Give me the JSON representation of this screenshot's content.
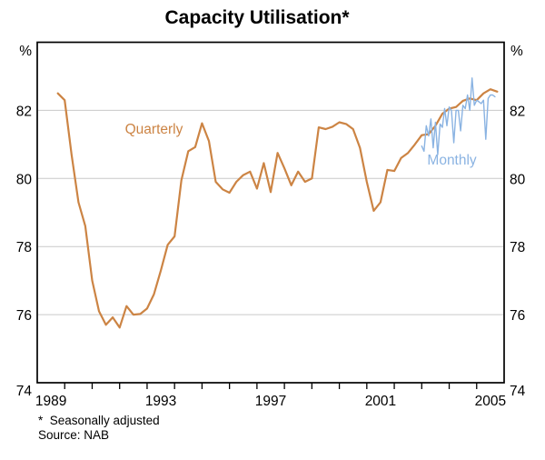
{
  "title": "Capacity Utilisation*",
  "axis_unit_left": "%",
  "axis_unit_right": "%",
  "footnote": "*  Seasonally adjusted",
  "source": "Source: NAB",
  "colors": {
    "quarterly_line": "#cc8444",
    "monthly_line": "#8ab3e2",
    "gridline": "#c9c9c9",
    "axis": "#000000"
  },
  "chart_data": {
    "type": "line",
    "title": "Capacity Utilisation*",
    "ylabel": "%",
    "ylim": [
      74,
      84
    ],
    "yticks": [
      74,
      76,
      78,
      80,
      82
    ],
    "gridlines": [
      76,
      78,
      80,
      82
    ],
    "xlim": [
      1989,
      2006
    ],
    "xticks_minor": [
      1990,
      1991,
      1992,
      1993,
      1994,
      1995,
      1996,
      1997,
      1998,
      1999,
      2000,
      2001,
      2002,
      2003,
      2004,
      2005
    ],
    "xtick_labeled_years": [
      1989,
      1993,
      1997,
      2001,
      2005
    ],
    "grid": true,
    "legend_position": "inline-labels",
    "series": [
      {
        "name": "Quarterly",
        "color": "#cc8444",
        "line_width": 2.2,
        "x_start": 1989.75,
        "x_step": 0.25,
        "label_anchor": {
          "x": 1993.25,
          "y": 81.45
        },
        "values": [
          82.5,
          82.3,
          80.7,
          79.3,
          78.6,
          77.0,
          76.1,
          75.7,
          75.92,
          75.62,
          76.25,
          76.0,
          76.02,
          76.18,
          76.6,
          77.3,
          78.05,
          78.3,
          79.95,
          80.8,
          80.92,
          81.62,
          81.1,
          79.9,
          79.68,
          79.58,
          79.9,
          80.1,
          80.2,
          79.7,
          80.45,
          79.6,
          80.75,
          80.3,
          79.8,
          80.2,
          79.9,
          80.0,
          81.5,
          81.45,
          81.52,
          81.65,
          81.6,
          81.45,
          80.9,
          79.9,
          79.05,
          79.3,
          80.25,
          80.22,
          80.6,
          80.75,
          81.0,
          81.27,
          81.3,
          81.55,
          81.9,
          82.05,
          82.1,
          82.28,
          82.35,
          82.3,
          82.5,
          82.62,
          82.55
        ]
      },
      {
        "name": "Monthly",
        "color": "#8ab3e2",
        "line_width": 1.4,
        "x_start": 2003.0,
        "x_step": 0.0833333,
        "label_anchor": {
          "x": 2004.1,
          "y": 80.54
        },
        "values": [
          80.95,
          80.8,
          81.55,
          81.25,
          81.75,
          80.9,
          81.65,
          80.7,
          81.6,
          81.5,
          82.05,
          81.55,
          82.1,
          82.0,
          81.05,
          82.0,
          82.0,
          81.4,
          82.15,
          82.05,
          82.45,
          82.0,
          82.95,
          82.15,
          82.3,
          82.25,
          82.2,
          82.3,
          81.15,
          82.35,
          82.45,
          82.45,
          82.4
        ]
      }
    ]
  }
}
